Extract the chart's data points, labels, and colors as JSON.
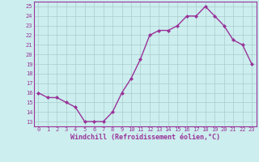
{
  "x": [
    0,
    1,
    2,
    3,
    4,
    5,
    6,
    7,
    8,
    9,
    10,
    11,
    12,
    13,
    14,
    15,
    16,
    17,
    18,
    19,
    20,
    21,
    22,
    23
  ],
  "y": [
    16,
    15.5,
    15.5,
    15,
    14.5,
    13,
    13,
    13,
    14,
    16,
    17.5,
    19.5,
    22,
    22.5,
    22.5,
    23,
    24,
    24,
    25,
    24,
    23,
    21.5,
    21,
    19
  ],
  "line_color": "#993399",
  "marker": "D",
  "marker_size": 2.0,
  "bg_color": "#cceeee",
  "grid_color": "#aacccc",
  "xlabel": "Windchill (Refroidissement éolien,°C)",
  "xlabel_color": "#993399",
  "tick_color": "#993399",
  "ylim_min": 12.5,
  "ylim_max": 25.5,
  "yticks": [
    13,
    14,
    15,
    16,
    17,
    18,
    19,
    20,
    21,
    22,
    23,
    24,
    25
  ],
  "xticks": [
    0,
    1,
    2,
    3,
    4,
    5,
    6,
    7,
    8,
    9,
    10,
    11,
    12,
    13,
    14,
    15,
    16,
    17,
    18,
    19,
    20,
    21,
    22,
    23
  ],
  "xtick_labels": [
    "0",
    "1",
    "2",
    "3",
    "4",
    "5",
    "6",
    "7",
    "8",
    "9",
    "10",
    "11",
    "12",
    "13",
    "14",
    "15",
    "16",
    "17",
    "18",
    "19",
    "20",
    "21",
    "22",
    "23"
  ],
  "line_width": 1.0,
  "tick_fontsize": 5.0,
  "xlabel_fontsize": 6.0
}
